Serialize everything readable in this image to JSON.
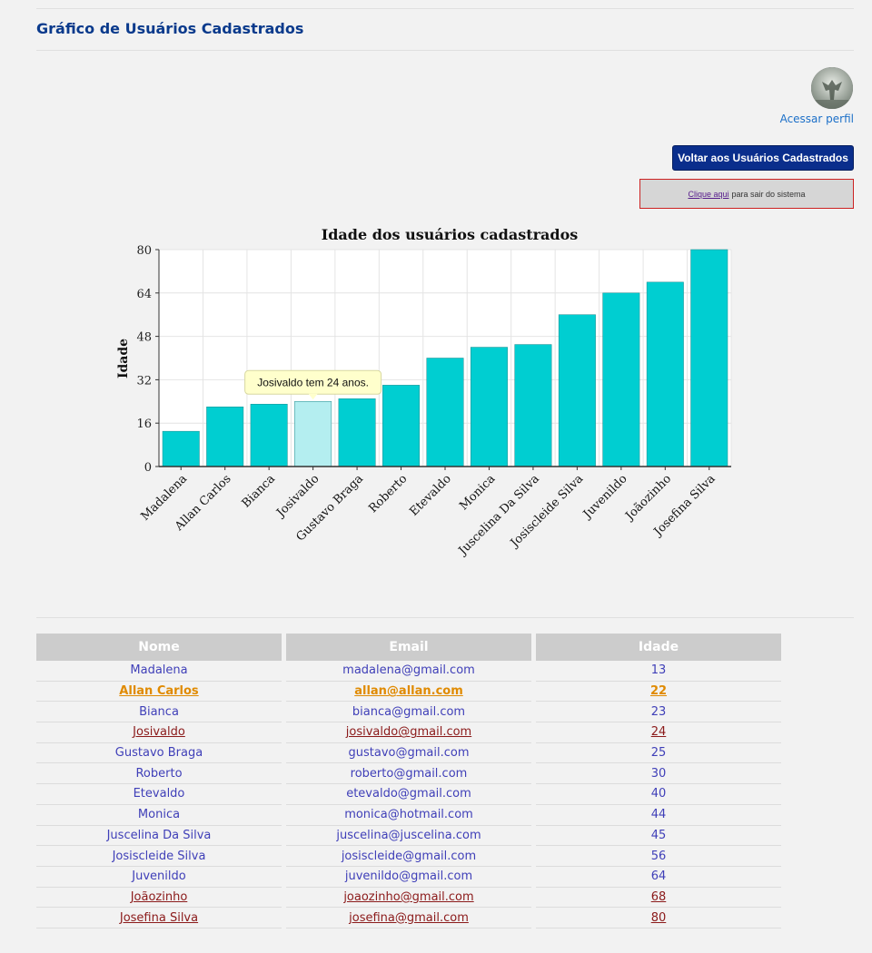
{
  "page": {
    "title": "Gráfico de Usuários Cadastrados",
    "profile_link": "Acessar perfil",
    "back_button": "Voltar aos Usuários Cadastrados",
    "logout_link": "Clique aqui",
    "logout_text": "para sair do sistema"
  },
  "chart_data": {
    "type": "bar",
    "title": "Idade dos usuários cadastrados",
    "ylabel": "Idade",
    "xlabel": "",
    "ylim": [
      0,
      80
    ],
    "yticks": [
      0,
      16,
      32,
      48,
      64,
      80
    ],
    "grid": true,
    "categories": [
      "Madalena",
      "Allan Carlos",
      "Bianca",
      "Josivaldo",
      "Gustavo Braga",
      "Roberto",
      "Etevaldo",
      "Monica",
      "Juscelina Da Silva",
      "Josiscleide Silva",
      "Juvenildo",
      "Joãozinho",
      "Josefina Silva"
    ],
    "values": [
      13,
      22,
      23,
      24,
      25,
      30,
      40,
      44,
      45,
      56,
      64,
      68,
      80
    ],
    "bar_color": "#00ced1",
    "highlight_color": "#b4eef0",
    "highlight_index": 3,
    "tooltip": "Josivaldo tem 24 anos."
  },
  "table": {
    "headers": [
      "Nome",
      "Email",
      "Idade"
    ],
    "rows": [
      {
        "nome": "Madalena",
        "email": "madalena@gmail.com",
        "idade": "13",
        "state": "normal"
      },
      {
        "nome": "Allan Carlos",
        "email": "allan@allan.com",
        "idade": "22",
        "state": "active"
      },
      {
        "nome": "Bianca",
        "email": "bianca@gmail.com",
        "idade": "23",
        "state": "normal"
      },
      {
        "nome": "Josivaldo",
        "email": "josivaldo@gmail.com",
        "idade": "24",
        "state": "visited"
      },
      {
        "nome": "Gustavo Braga",
        "email": "gustavo@gmail.com",
        "idade": "25",
        "state": "normal"
      },
      {
        "nome": "Roberto",
        "email": "roberto@gmail.com",
        "idade": "30",
        "state": "normal"
      },
      {
        "nome": "Etevaldo",
        "email": "etevaldo@gmail.com",
        "idade": "40",
        "state": "normal"
      },
      {
        "nome": "Monica",
        "email": "monica@hotmail.com",
        "idade": "44",
        "state": "normal"
      },
      {
        "nome": "Juscelina Da Silva",
        "email": "juscelina@juscelina.com",
        "idade": "45",
        "state": "normal"
      },
      {
        "nome": "Josiscleide Silva",
        "email": "josiscleide@gmail.com",
        "idade": "56",
        "state": "normal"
      },
      {
        "nome": "Juvenildo",
        "email": "juvenildo@gmail.com",
        "idade": "64",
        "state": "normal"
      },
      {
        "nome": "Joãozinho",
        "email": "joaozinho@gmail.com",
        "idade": "68",
        "state": "visited"
      },
      {
        "nome": "Josefina Silva",
        "email": "josefina@gmail.com",
        "idade": "80",
        "state": "visited"
      }
    ]
  }
}
